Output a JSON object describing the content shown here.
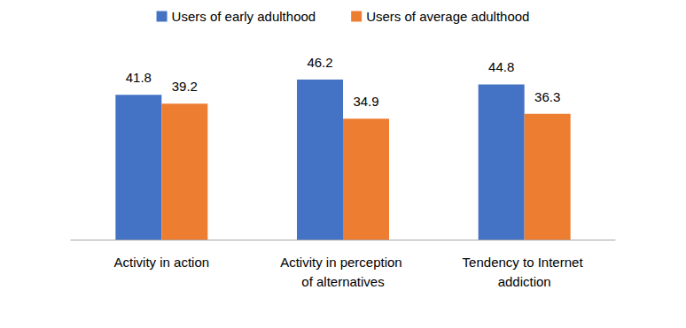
{
  "chart_data": {
    "type": "bar",
    "categories": [
      "Activity in action",
      "Activity in perception of alternatives",
      "Tendency to Internet addiction"
    ],
    "series": [
      {
        "name": "Users of early adulthood",
        "color": "#4472c4",
        "values": [
          41.8,
          46.2,
          44.8
        ]
      },
      {
        "name": "Users of average adulthood",
        "color": "#ed7d31",
        "values": [
          39.2,
          34.9,
          36.3
        ]
      }
    ],
    "data_labels": true,
    "legend": "top",
    "grid": false,
    "tick_labels": "x"
  }
}
